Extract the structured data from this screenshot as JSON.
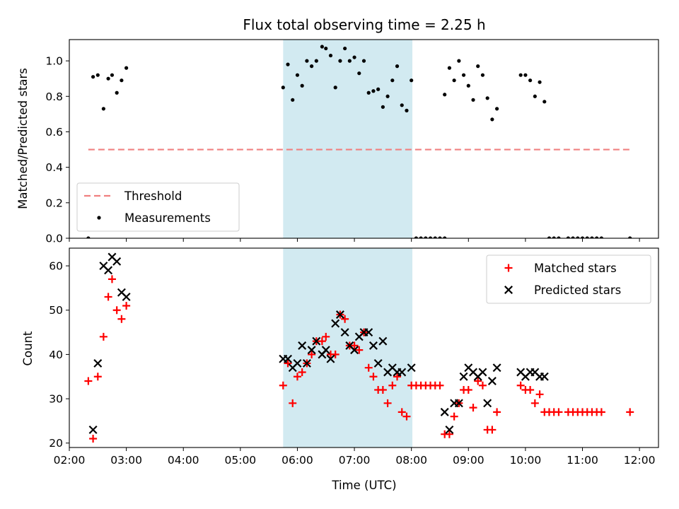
{
  "chart_data": [
    {
      "type": "scatter",
      "title": "Flux total observing time = 2.25 h",
      "xlabel": "",
      "ylabel": "Matched/Predicted stars",
      "xlim": [
        "02:00",
        "12:20"
      ],
      "ylim": [
        0,
        1.12
      ],
      "yticks": [
        0.0,
        0.2,
        0.4,
        0.6,
        0.8,
        1.0
      ],
      "ytick_labels": [
        "0.0",
        "0.2",
        "0.4",
        "0.6",
        "0.8",
        "1.0"
      ],
      "xticks": [
        "02:00",
        "03:00",
        "04:00",
        "05:00",
        "06:00",
        "07:00",
        "08:00",
        "09:00",
        "10:00",
        "11:00",
        "12:00"
      ],
      "shaded_span": [
        "05:45",
        "08:01"
      ],
      "shaded_color": "#add8e6",
      "legend_position": "lower-left",
      "series": [
        {
          "name": "Threshold",
          "kind": "dashed-line",
          "color": "#f08080",
          "x": [
            "02:20",
            "11:50"
          ],
          "y": [
            0.5,
            0.5
          ]
        },
        {
          "name": "Measurements",
          "kind": "dot",
          "color": "#000000",
          "points": [
            [
              "02:20",
              0.0
            ],
            [
              "02:25",
              0.91
            ],
            [
              "02:30",
              0.92
            ],
            [
              "02:36",
              0.73
            ],
            [
              "02:41",
              0.9
            ],
            [
              "02:45",
              0.92
            ],
            [
              "02:50",
              0.82
            ],
            [
              "02:55",
              0.89
            ],
            [
              "03:00",
              0.96
            ],
            [
              "05:45",
              0.85
            ],
            [
              "05:50",
              0.98
            ],
            [
              "05:55",
              0.78
            ],
            [
              "06:00",
              0.92
            ],
            [
              "06:05",
              0.86
            ],
            [
              "06:10",
              1.0
            ],
            [
              "06:15",
              0.97
            ],
            [
              "06:20",
              1.0
            ],
            [
              "06:26",
              1.08
            ],
            [
              "06:30",
              1.07
            ],
            [
              "06:35",
              1.03
            ],
            [
              "06:40",
              0.85
            ],
            [
              "06:45",
              1.0
            ],
            [
              "06:50",
              1.07
            ],
            [
              "06:55",
              1.0
            ],
            [
              "07:00",
              1.02
            ],
            [
              "07:05",
              0.93
            ],
            [
              "07:10",
              1.0
            ],
            [
              "07:15",
              0.82
            ],
            [
              "07:20",
              0.83
            ],
            [
              "07:25",
              0.84
            ],
            [
              "07:30",
              0.74
            ],
            [
              "07:35",
              0.8
            ],
            [
              "07:40",
              0.89
            ],
            [
              "07:45",
              0.97
            ],
            [
              "07:50",
              0.75
            ],
            [
              "07:55",
              0.72
            ],
            [
              "08:00",
              0.89
            ],
            [
              "08:05",
              0.0
            ],
            [
              "08:10",
              0.0
            ],
            [
              "08:15",
              0.0
            ],
            [
              "08:20",
              0.0
            ],
            [
              "08:25",
              0.0
            ],
            [
              "08:30",
              0.0
            ],
            [
              "08:35",
              0.0
            ],
            [
              "08:35",
              0.81
            ],
            [
              "08:40",
              0.96
            ],
            [
              "08:45",
              0.89
            ],
            [
              "08:50",
              1.0
            ],
            [
              "08:55",
              0.92
            ],
            [
              "09:00",
              0.86
            ],
            [
              "09:05",
              0.78
            ],
            [
              "09:10",
              0.97
            ],
            [
              "09:15",
              0.92
            ],
            [
              "09:20",
              0.79
            ],
            [
              "09:25",
              0.67
            ],
            [
              "09:30",
              0.73
            ],
            [
              "09:55",
              0.92
            ],
            [
              "10:00",
              0.92
            ],
            [
              "10:05",
              0.89
            ],
            [
              "10:10",
              0.8
            ],
            [
              "10:15",
              0.88
            ],
            [
              "10:20",
              0.77
            ],
            [
              "10:25",
              0.0
            ],
            [
              "10:30",
              0.0
            ],
            [
              "10:35",
              0.0
            ],
            [
              "10:45",
              0.0
            ],
            [
              "10:50",
              0.0
            ],
            [
              "10:55",
              0.0
            ],
            [
              "11:00",
              0.0
            ],
            [
              "11:05",
              0.0
            ],
            [
              "11:10",
              0.0
            ],
            [
              "11:15",
              0.0
            ],
            [
              "11:20",
              0.0
            ],
            [
              "11:50",
              0.0
            ]
          ]
        }
      ]
    },
    {
      "type": "scatter",
      "title": "",
      "xlabel": "Time (UTC)",
      "ylabel": "Count",
      "xlim": [
        "02:00",
        "12:20"
      ],
      "ylim": [
        19,
        64
      ],
      "yticks": [
        20,
        30,
        40,
        50,
        60
      ],
      "ytick_labels": [
        "20",
        "30",
        "40",
        "50",
        "60"
      ],
      "xticks": [
        "02:00",
        "03:00",
        "04:00",
        "05:00",
        "06:00",
        "07:00",
        "08:00",
        "09:00",
        "10:00",
        "11:00",
        "12:00"
      ],
      "xtick_labels": [
        "02:00",
        "03:00",
        "04:00",
        "05:00",
        "06:00",
        "07:00",
        "08:00",
        "09:00",
        "10:00",
        "11:00",
        "12:00"
      ],
      "shaded_span": [
        "05:45",
        "08:01"
      ],
      "shaded_color": "#add8e6",
      "legend_position": "upper-right",
      "series": [
        {
          "name": "Matched stars",
          "kind": "plus",
          "color": "#ff0000",
          "points": [
            [
              "02:20",
              34
            ],
            [
              "02:25",
              21
            ],
            [
              "02:30",
              35
            ],
            [
              "02:36",
              44
            ],
            [
              "02:41",
              53
            ],
            [
              "02:45",
              57
            ],
            [
              "02:50",
              50
            ],
            [
              "02:55",
              48
            ],
            [
              "03:00",
              51
            ],
            [
              "05:45",
              33
            ],
            [
              "05:50",
              38
            ],
            [
              "05:55",
              29
            ],
            [
              "06:00",
              35
            ],
            [
              "06:05",
              36
            ],
            [
              "06:10",
              38
            ],
            [
              "06:15",
              40
            ],
            [
              "06:20",
              43
            ],
            [
              "06:26",
              43
            ],
            [
              "06:30",
              44
            ],
            [
              "06:35",
              40
            ],
            [
              "06:40",
              40
            ],
            [
              "06:45",
              49
            ],
            [
              "06:50",
              48
            ],
            [
              "06:55",
              42
            ],
            [
              "07:00",
              42
            ],
            [
              "07:05",
              41
            ],
            [
              "07:10",
              45
            ],
            [
              "07:15",
              37
            ],
            [
              "07:20",
              35
            ],
            [
              "07:25",
              32
            ],
            [
              "07:30",
              32
            ],
            [
              "07:35",
              29
            ],
            [
              "07:40",
              33
            ],
            [
              "07:45",
              35
            ],
            [
              "07:50",
              27
            ],
            [
              "07:55",
              26
            ],
            [
              "08:00",
              33
            ],
            [
              "08:05",
              33
            ],
            [
              "08:10",
              33
            ],
            [
              "08:15",
              33
            ],
            [
              "08:20",
              33
            ],
            [
              "08:25",
              33
            ],
            [
              "08:30",
              33
            ],
            [
              "08:35",
              22
            ],
            [
              "08:40",
              22
            ],
            [
              "08:45",
              26
            ],
            [
              "08:50",
              29
            ],
            [
              "08:55",
              32
            ],
            [
              "09:00",
              32
            ],
            [
              "09:05",
              28
            ],
            [
              "09:10",
              34
            ],
            [
              "09:15",
              33
            ],
            [
              "09:20",
              23
            ],
            [
              "09:25",
              23
            ],
            [
              "09:30",
              27
            ],
            [
              "09:55",
              33
            ],
            [
              "10:00",
              32
            ],
            [
              "10:05",
              32
            ],
            [
              "10:10",
              29
            ],
            [
              "10:15",
              31
            ],
            [
              "10:20",
              27
            ],
            [
              "10:25",
              27
            ],
            [
              "10:30",
              27
            ],
            [
              "10:35",
              27
            ],
            [
              "10:45",
              27
            ],
            [
              "10:50",
              27
            ],
            [
              "10:55",
              27
            ],
            [
              "11:00",
              27
            ],
            [
              "11:05",
              27
            ],
            [
              "11:10",
              27
            ],
            [
              "11:15",
              27
            ],
            [
              "11:20",
              27
            ],
            [
              "11:50",
              27
            ]
          ]
        },
        {
          "name": "Predicted stars",
          "kind": "cross",
          "color": "#000000",
          "points": [
            [
              "02:25",
              23
            ],
            [
              "02:30",
              38
            ],
            [
              "02:36",
              60
            ],
            [
              "02:41",
              59
            ],
            [
              "02:45",
              62
            ],
            [
              "02:50",
              61
            ],
            [
              "02:55",
              54
            ],
            [
              "03:00",
              53
            ],
            [
              "05:45",
              39
            ],
            [
              "05:50",
              39
            ],
            [
              "05:55",
              37
            ],
            [
              "06:00",
              38
            ],
            [
              "06:05",
              42
            ],
            [
              "06:10",
              38
            ],
            [
              "06:15",
              41
            ],
            [
              "06:20",
              43
            ],
            [
              "06:26",
              40
            ],
            [
              "06:30",
              41
            ],
            [
              "06:35",
              39
            ],
            [
              "06:40",
              47
            ],
            [
              "06:45",
              49
            ],
            [
              "06:50",
              45
            ],
            [
              "06:55",
              42
            ],
            [
              "07:00",
              41
            ],
            [
              "07:05",
              44
            ],
            [
              "07:10",
              45
            ],
            [
              "07:15",
              45
            ],
            [
              "07:20",
              42
            ],
            [
              "07:25",
              38
            ],
            [
              "07:30",
              43
            ],
            [
              "07:35",
              36
            ],
            [
              "07:40",
              37
            ],
            [
              "07:45",
              36
            ],
            [
              "07:50",
              36
            ],
            [
              "08:00",
              37
            ],
            [
              "08:35",
              27
            ],
            [
              "08:40",
              23
            ],
            [
              "08:45",
              29
            ],
            [
              "08:50",
              29
            ],
            [
              "08:55",
              35
            ],
            [
              "09:00",
              37
            ],
            [
              "09:05",
              36
            ],
            [
              "09:10",
              35
            ],
            [
              "09:15",
              36
            ],
            [
              "09:20",
              29
            ],
            [
              "09:25",
              34
            ],
            [
              "09:30",
              37
            ],
            [
              "09:55",
              36
            ],
            [
              "10:00",
              35
            ],
            [
              "10:05",
              36
            ],
            [
              "10:10",
              36
            ],
            [
              "10:15",
              35
            ],
            [
              "10:20",
              35
            ]
          ]
        }
      ]
    }
  ]
}
